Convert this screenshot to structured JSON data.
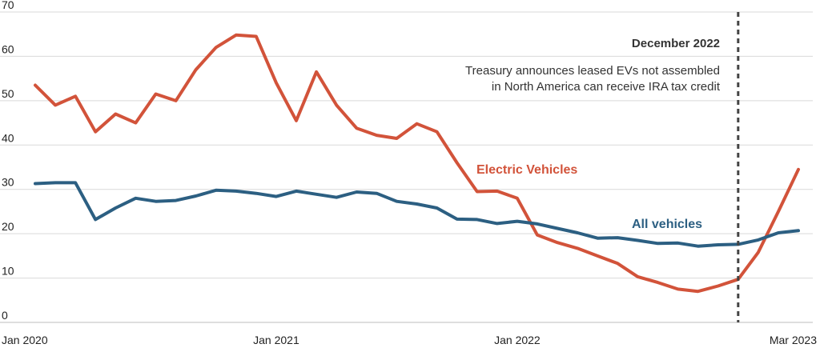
{
  "chart_data": {
    "type": "line",
    "title": "",
    "xlabel": "",
    "ylabel": "",
    "ylim": [
      0,
      70
    ],
    "yticks": [
      0,
      10,
      20,
      30,
      40,
      50,
      60,
      70
    ],
    "xlim": [
      "2020-01",
      "2023-04"
    ],
    "xticks": [
      {
        "x": "2020-01",
        "label": "Jan 2020"
      },
      {
        "x": "2021-01",
        "label": "Jan 2021"
      },
      {
        "x": "2022-01",
        "label": "Jan 2022"
      },
      {
        "x": "2023-03",
        "label": "Mar 2023"
      }
    ],
    "grid": true,
    "x": [
      "2020-01",
      "2020-02",
      "2020-03",
      "2020-04",
      "2020-05",
      "2020-06",
      "2020-07",
      "2020-08",
      "2020-09",
      "2020-10",
      "2020-11",
      "2020-12",
      "2021-01",
      "2021-02",
      "2021-03",
      "2021-04",
      "2021-05",
      "2021-06",
      "2021-07",
      "2021-08",
      "2021-09",
      "2021-10",
      "2021-11",
      "2021-12",
      "2022-01",
      "2022-02",
      "2022-03",
      "2022-04",
      "2022-05",
      "2022-06",
      "2022-07",
      "2022-08",
      "2022-09",
      "2022-10",
      "2022-11",
      "2022-12",
      "2023-01",
      "2023-02",
      "2023-03"
    ],
    "series": [
      {
        "name": "Electric Vehicles",
        "color": "#d2533a",
        "values": [
          53.5,
          49.0,
          51.0,
          43.0,
          47.0,
          45.0,
          51.5,
          50.0,
          57.0,
          62.0,
          64.8,
          64.5,
          54.0,
          45.5,
          56.5,
          49.0,
          43.8,
          42.2,
          41.5,
          44.8,
          43.0,
          36.0,
          29.5,
          29.6,
          28.0,
          19.7,
          18.0,
          16.7,
          15.0,
          13.3,
          10.3,
          9.0,
          7.5,
          7.0,
          8.2,
          9.7,
          15.8,
          25.0,
          34.5
        ]
      },
      {
        "name": "All vehicles",
        "color": "#2c5f82",
        "values": [
          31.3,
          31.5,
          31.5,
          23.2,
          25.8,
          28.0,
          27.3,
          27.5,
          28.5,
          29.8,
          29.6,
          29.1,
          28.4,
          29.6,
          28.9,
          28.2,
          29.4,
          29.1,
          27.3,
          26.7,
          25.8,
          23.3,
          23.2,
          22.3,
          22.8,
          22.2,
          21.2,
          20.2,
          19.0,
          19.1,
          18.5,
          17.8,
          17.9,
          17.2,
          17.5,
          17.6,
          18.6,
          20.2,
          20.7
        ]
      }
    ],
    "event_line": {
      "x": "2022-12"
    },
    "annotation": {
      "title": "December 2022",
      "lines": [
        "Treasury announces leased EVs not assembled",
        "in North America can receive IRA tax credit"
      ]
    }
  }
}
